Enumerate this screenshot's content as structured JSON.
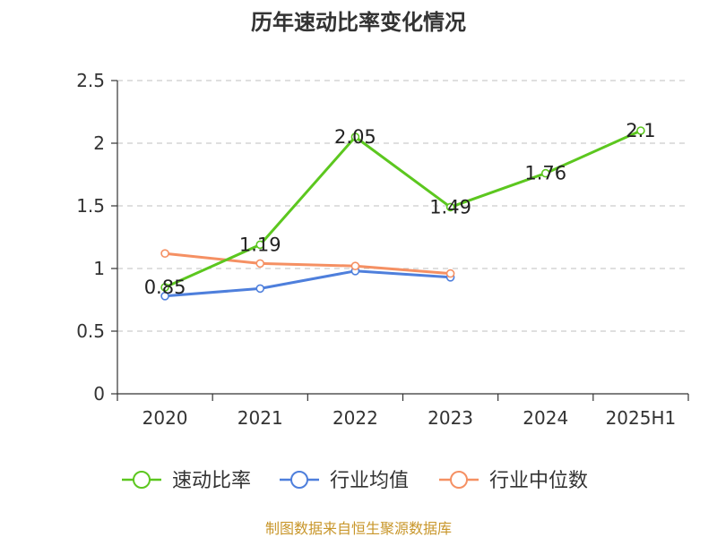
{
  "chart_data": {
    "type": "line",
    "title": "历年速动比率变化情况",
    "categories": [
      "2020",
      "2021",
      "2022",
      "2023",
      "2024",
      "2025H1"
    ],
    "ylim": [
      0,
      2.5
    ],
    "yticks": [
      "0",
      "0.5",
      "1",
      "1.5",
      "2",
      "2.5"
    ],
    "grid": true,
    "legend_position": "bottom",
    "series": [
      {
        "name": "速动比率",
        "color": "#5cc71f",
        "values": [
          0.85,
          1.19,
          2.05,
          1.49,
          1.76,
          2.1
        ],
        "labels": [
          "0.85",
          "1.19",
          "2.05",
          "1.49",
          "1.76",
          "2.1"
        ]
      },
      {
        "name": "行业均值",
        "color": "#4e7fdc",
        "values": [
          0.78,
          0.84,
          0.98,
          0.93,
          null,
          null
        ]
      },
      {
        "name": "行业中位数",
        "color": "#f59063",
        "values": [
          1.12,
          1.04,
          1.02,
          0.96,
          null,
          null
        ]
      }
    ]
  },
  "source": {
    "text": "制图数据来自恒生聚源数据库",
    "color": "#c8962a"
  }
}
